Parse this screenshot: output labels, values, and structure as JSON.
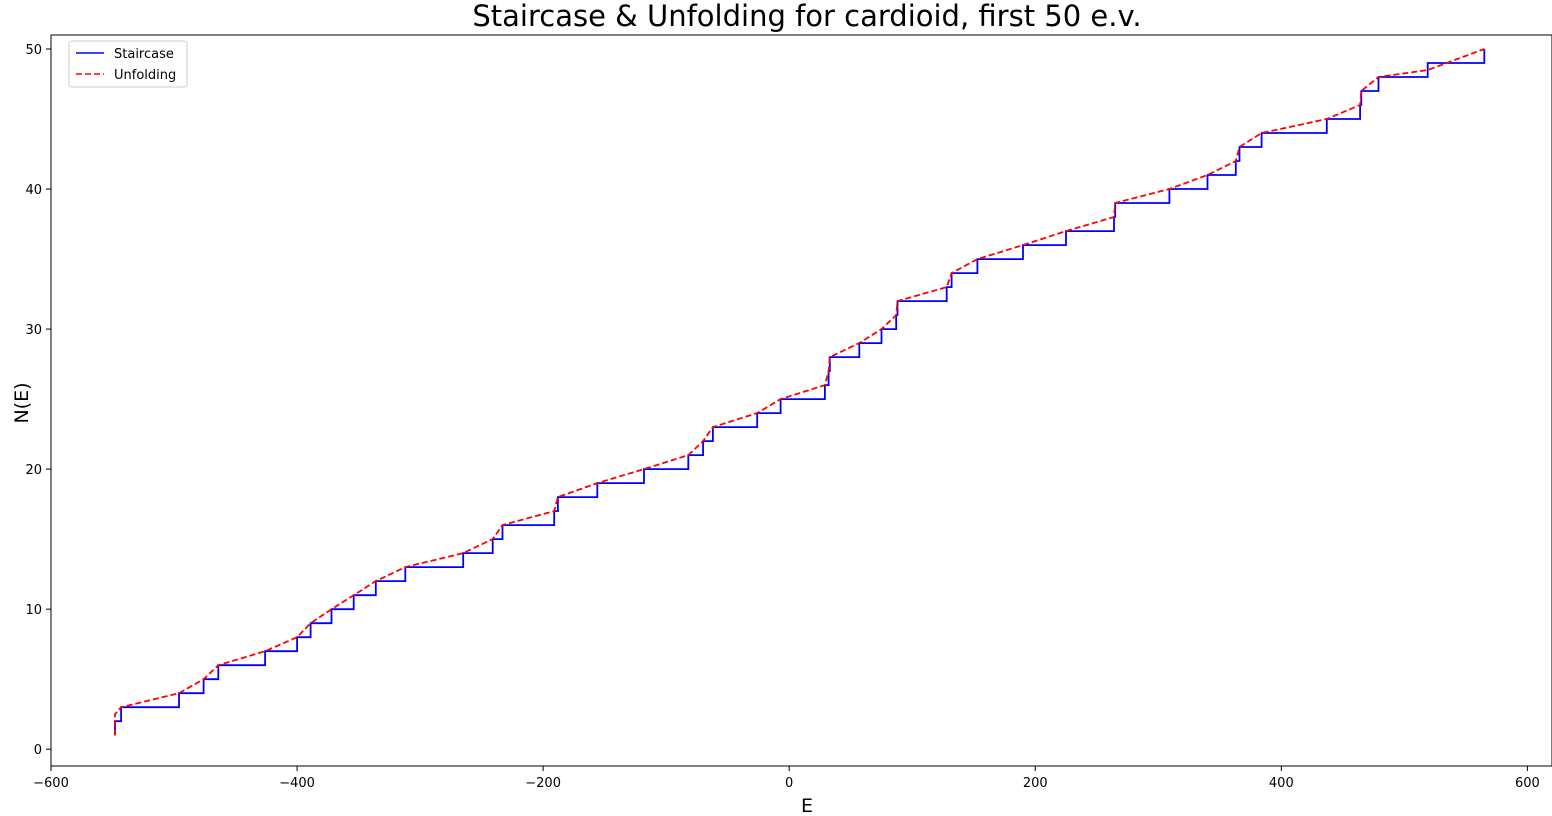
{
  "chart_data": {
    "type": "line",
    "title": "Staircase & Unfolding for cardioid, first 50 e.v.",
    "xlabel": "E",
    "ylabel": "N(E)",
    "xlim": [
      -600,
      620
    ],
    "ylim": [
      -1.2,
      51
    ],
    "xticks": [
      -600,
      -400,
      -200,
      0,
      200,
      400,
      600
    ],
    "yticks": [
      0,
      10,
      20,
      30,
      40,
      50
    ],
    "xtick_labels": [
      "−600",
      "−400",
      "−200",
      "0",
      "200",
      "400",
      "600"
    ],
    "ytick_labels": [
      "0",
      "10",
      "20",
      "30",
      "40",
      "50"
    ],
    "grid": false,
    "legend_position": "top-left",
    "eigenvalues": [
      -548,
      -548,
      -543,
      -496,
      -476,
      -464,
      -426,
      -400,
      -389,
      -372,
      -354,
      -336,
      -312,
      -265,
      -241,
      -233,
      -191,
      -188,
      -156,
      -118,
      -82,
      -70,
      -62,
      -26,
      -7,
      29,
      32,
      33,
      57,
      75,
      87,
      88,
      128,
      132,
      153,
      190,
      225,
      264,
      265,
      309,
      340,
      363,
      366,
      384,
      437,
      464,
      465,
      479,
      519,
      565
    ],
    "series": [
      {
        "name": "Staircase",
        "color": "#0000ff",
        "style": "solid",
        "kind": "step"
      },
      {
        "name": "Unfolding",
        "color": "#ff0000",
        "style": "dashed",
        "kind": "smooth"
      }
    ]
  }
}
